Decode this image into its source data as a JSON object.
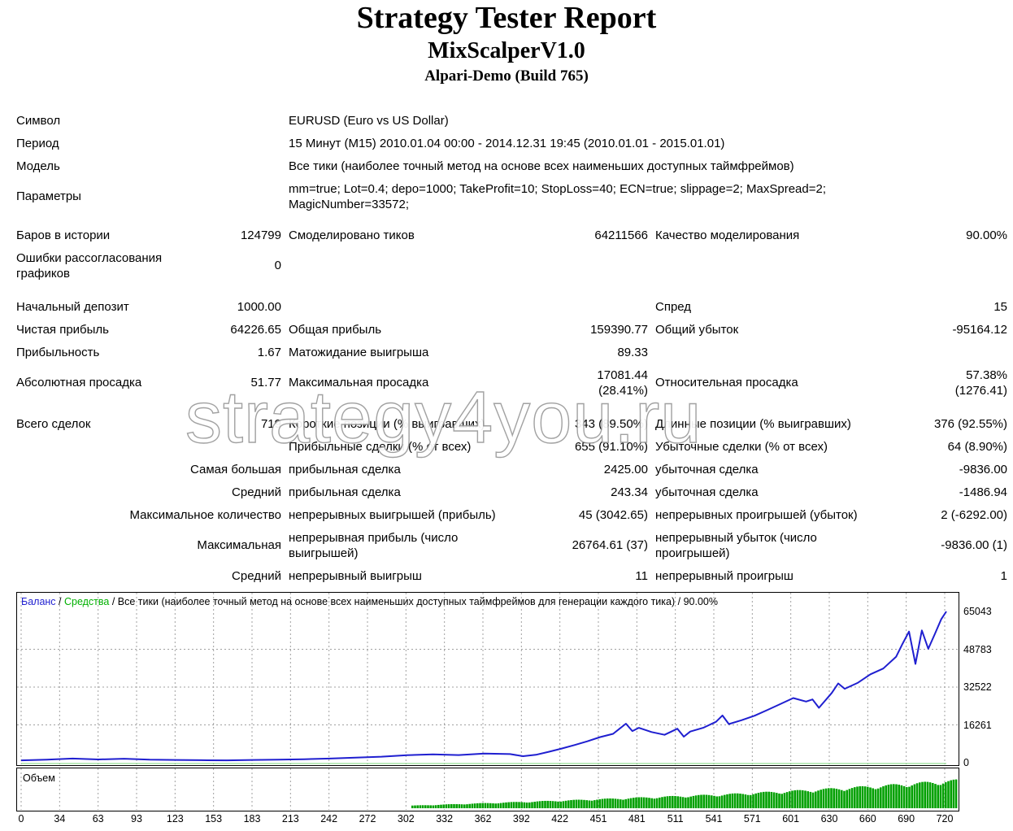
{
  "report": {
    "title": "Strategy Tester Report",
    "expert": "MixScalperV1.0",
    "server": "Alpari-Demo (Build 765)"
  },
  "settings": {
    "symbol_label": "Символ",
    "symbol_value": "EURUSD (Euro vs US Dollar)",
    "period_label": "Период",
    "period_value": "15 Минут (M15) 2010.01.04 00:00 - 2014.12.31 19:45 (2010.01.01 - 2015.01.01)",
    "model_label": "Модель",
    "model_value": "Все тики (наиболее точный метод на основе всех наименьших доступных таймфреймов)",
    "params_label": "Параметры",
    "params_value": "mm=true; Lot=0.4; depo=1000; TakeProfit=10; StopLoss=40; ECN=true; slippage=2; MaxSpread=2; MagicNumber=33572;"
  },
  "stats": {
    "bars_label": "Баров в истории",
    "bars_value": "124799",
    "ticks_label": "Смоделировано тиков",
    "ticks_value": "64211566",
    "quality_label": "Качество моделирования",
    "quality_value": "90.00%",
    "errors_label": "Ошибки рассогласования графиков",
    "errors_value": "0",
    "deposit_label": "Начальный депозит",
    "deposit_value": "1000.00",
    "spread_label": "Спред",
    "spread_value": "15",
    "net_label": "Чистая прибыль",
    "net_value": "64226.65",
    "gross_profit_label": "Общая прибыль",
    "gross_profit_value": "159390.77",
    "gross_loss_label": "Общий убыток",
    "gross_loss_value": "-95164.12",
    "pf_label": "Прибыльность",
    "pf_value": "1.67",
    "expected_label": "Матожидание выигрыша",
    "expected_value": "89.33",
    "abs_dd_label": "Абсолютная просадка",
    "abs_dd_value": "51.77",
    "max_dd_label": "Максимальная просадка",
    "max_dd_value_1": "17081.44",
    "max_dd_value_2": "(28.41%)",
    "rel_dd_label": "Относительная просадка",
    "rel_dd_value_1": "57.38%",
    "rel_dd_value_2": "(1276.41)",
    "total_label": "Всего сделок",
    "total_value": "719",
    "short_label": "Короткие позиции (% выигравших)",
    "short_value": "343 (89.50%)",
    "long_label": "Длинные позиции (% выигравших)",
    "long_value": "376 (92.55%)",
    "profit_trades_label": "Прибыльные сделки (% от всех)",
    "profit_trades_value": "655 (91.10%)",
    "loss_trades_label": "Убыточные сделки (% от всех)",
    "loss_trades_value": "64 (8.90%)",
    "largest_label": "Самая большая",
    "largest_profit_label": "прибыльная сделка",
    "largest_profit_value": "2425.00",
    "largest_loss_label": "убыточная сделка",
    "largest_loss_value": "-9836.00",
    "average_label": "Средний",
    "average_profit_label": "прибыльная сделка",
    "average_profit_value": "243.34",
    "average_loss_label": "убыточная сделка",
    "average_loss_value": "-1486.94",
    "max_count_label": "Максимальное количество",
    "max_cons_wins_label": "непрерывных выигрышей (прибыль)",
    "max_cons_wins_value": "45 (3042.65)",
    "max_cons_losses_label": "непрерывных проигрышей (убыток)",
    "max_cons_losses_value": "2 (-6292.00)",
    "maximal_label": "Максимальная",
    "maximal_profit_label": "непрерывная прибыль (число выигрышей)",
    "maximal_profit_value": "26764.61 (37)",
    "maximal_loss_label": "непрерывный убыток (число проигрышей)",
    "maximal_loss_value": "-9836.00 (1)",
    "avg_cons_label": "Средний",
    "avg_cons_wins_label": "непрерывный выигрыш",
    "avg_cons_wins_value": "11",
    "avg_cons_losses_label": "непрерывный проигрыш",
    "avg_cons_losses_value": "1"
  },
  "watermark": "strategy4you.ru",
  "colors": {
    "balance": "#1f1fd0",
    "equity": "#00b000",
    "volume": "#00a000",
    "grid": "#a0a0a0"
  },
  "chart_data": [
    {
      "type": "line",
      "legend": {
        "balance": "Баланс",
        "sep1": " / ",
        "equity": "Средства",
        "sep2": " / ",
        "rest": "Все тики (наиболее точный метод на основе всех наименьших доступных таймфреймов для генерации каждого тика) / 90.00%"
      },
      "ylim": [
        0,
        65043
      ],
      "yticks": [
        "65043",
        "48783",
        "32522",
        "16261",
        "0"
      ],
      "xlim": [
        0,
        719
      ],
      "xticks": [
        "0",
        "34",
        "63",
        "93",
        "123",
        "153",
        "183",
        "213",
        "242",
        "272",
        "302",
        "332",
        "362",
        "392",
        "422",
        "451",
        "481",
        "511",
        "541",
        "571",
        "601",
        "630",
        "660",
        "690",
        "720"
      ],
      "grid": true,
      "series": [
        {
          "name": "Баланс",
          "x": [
            0,
            20,
            40,
            60,
            80,
            100,
            120,
            140,
            160,
            180,
            200,
            220,
            240,
            260,
            280,
            300,
            320,
            340,
            360,
            380,
            390,
            400,
            410,
            420,
            430,
            440,
            450,
            460,
            470,
            475,
            480,
            490,
            500,
            510,
            515,
            520,
            530,
            540,
            545,
            550,
            560,
            570,
            580,
            590,
            600,
            610,
            615,
            620,
            630,
            635,
            640,
            650,
            660,
            670,
            680,
            685,
            690,
            695,
            700,
            705,
            710,
            715,
            719
          ],
          "values": [
            1000,
            1300,
            1800,
            1400,
            1700,
            1300,
            1200,
            1100,
            1000,
            1200,
            1300,
            1500,
            1800,
            2200,
            2600,
            3200,
            3600,
            3300,
            3900,
            3700,
            2800,
            3400,
            4700,
            6100,
            7600,
            9200,
            11000,
            12400,
            16800,
            13600,
            15000,
            13200,
            12000,
            14600,
            11200,
            13400,
            15000,
            17600,
            20300,
            16600,
            18300,
            20200,
            22700,
            25200,
            27800,
            26300,
            27200,
            23600,
            30000,
            34100,
            31800,
            34300,
            38000,
            40500,
            45600,
            51200,
            56400,
            42500,
            56900,
            49000,
            55300,
            61700,
            65043
          ]
        }
      ]
    },
    {
      "type": "bar",
      "title": "Объем",
      "x": [
        0,
        60,
        120,
        180,
        240,
        300,
        360,
        420,
        480,
        540,
        600,
        660,
        720
      ],
      "values": [
        0,
        0,
        0,
        0,
        0,
        0.08,
        0.16,
        0.24,
        0.33,
        0.42,
        0.54,
        0.68,
        0.85
      ]
    }
  ]
}
